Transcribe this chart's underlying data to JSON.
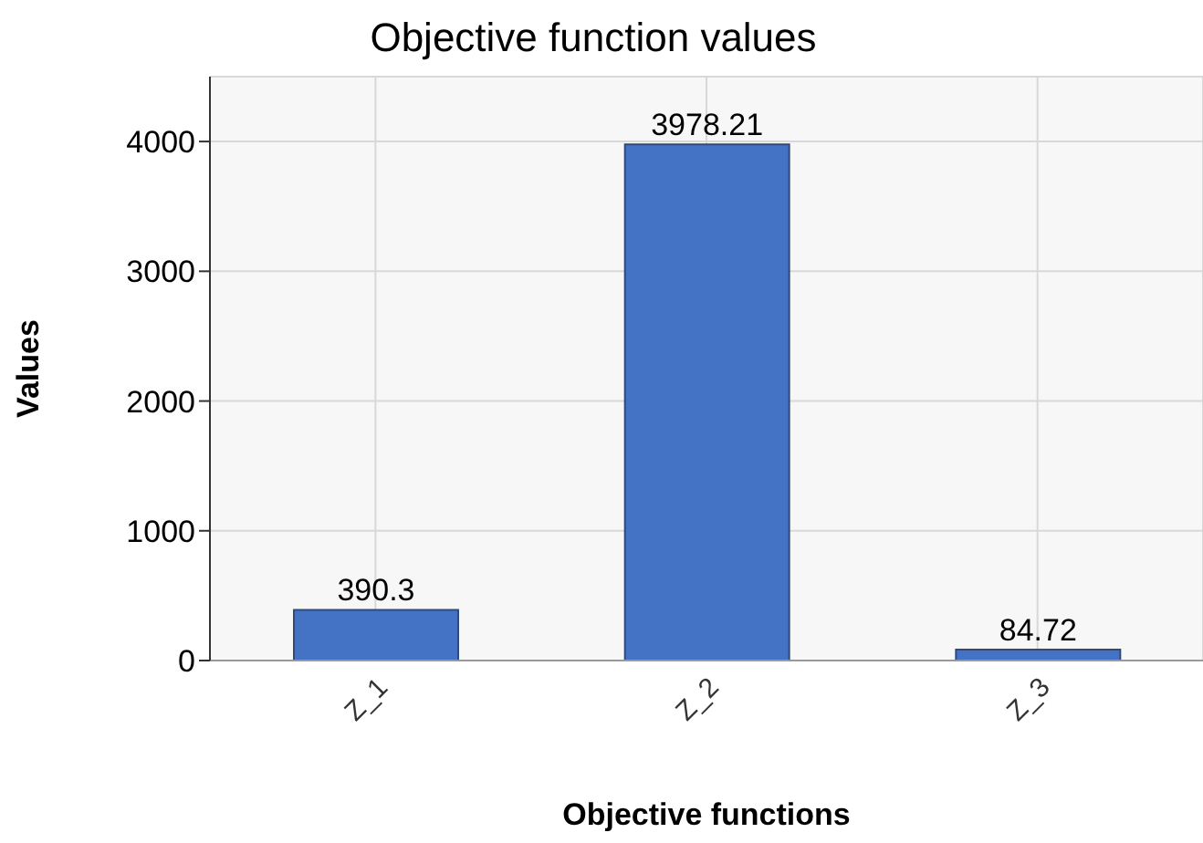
{
  "chart_data": {
    "type": "bar",
    "title": "Objective function values",
    "xlabel": "Objective functions",
    "ylabel": "Values",
    "categories": [
      "Z_1",
      "Z_2",
      "Z_3"
    ],
    "values": [
      390.3,
      3978.21,
      84.72
    ],
    "color": "#4472c4",
    "ylim": [
      0,
      4500
    ],
    "yticks": [
      0,
      1000,
      2000,
      3000,
      4000
    ],
    "grid": true,
    "data_labels": true
  }
}
